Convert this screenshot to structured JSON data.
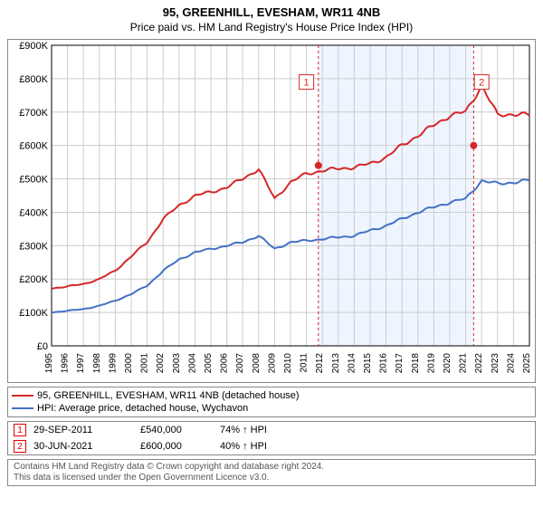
{
  "title": "95, GREENHILL, EVESHAM, WR11 4NB",
  "subtitle": "Price paid vs. HM Land Registry's House Price Index (HPI)",
  "chart": {
    "type": "line",
    "background_color": "#ffffff",
    "grid_color": "#cccccc",
    "axis_color": "#000000",
    "title_fontsize": 13,
    "subtitle_fontsize": 12,
    "label_fontsize": 11,
    "tick_fontsize": 10,
    "x_years": [
      1995,
      1996,
      1997,
      1998,
      1999,
      2000,
      2001,
      2002,
      2003,
      2004,
      2005,
      2006,
      2007,
      2008,
      2009,
      2010,
      2011,
      2012,
      2013,
      2014,
      2015,
      2016,
      2017,
      2018,
      2019,
      2020,
      2021,
      2022,
      2023,
      2024,
      2025
    ],
    "xlim": [
      1995,
      2025
    ],
    "ylim": [
      0,
      900000
    ],
    "ytick_step": 100000,
    "ytick_labels": [
      "£0",
      "£100K",
      "£200K",
      "£300K",
      "£400K",
      "£500K",
      "£600K",
      "£700K",
      "£800K",
      "£900K"
    ],
    "shaded_band": {
      "x_start": 2011.75,
      "x_end": 2021.5,
      "color": "#eef5ff"
    },
    "series": [
      {
        "name": "95, GREENHILL, EVESHAM, WR11 4NB (detached house)",
        "color": "#d62728",
        "line_width": 2,
        "values_per_year": [
          172,
          178,
          185,
          200,
          225,
          268,
          310,
          380,
          420,
          450,
          460,
          475,
          500,
          530,
          440,
          490,
          515,
          525,
          530,
          535,
          545,
          565,
          600,
          630,
          660,
          690,
          700,
          780,
          690,
          695,
          690
        ]
      },
      {
        "name": "HPI: Average price, detached house, Wychavon",
        "color": "#4472c4",
        "line_width": 2,
        "values_per_year": [
          100,
          105,
          110,
          120,
          135,
          155,
          180,
          225,
          258,
          280,
          290,
          300,
          310,
          330,
          290,
          310,
          315,
          320,
          325,
          330,
          345,
          360,
          380,
          400,
          415,
          430,
          440,
          495,
          485,
          490,
          495
        ]
      }
    ],
    "vlines": [
      {
        "x": 2011.75,
        "color": "#d62728",
        "dash": "3,3"
      },
      {
        "x": 2021.5,
        "color": "#d62728",
        "dash": "3,3"
      }
    ],
    "markers": [
      {
        "id": "1",
        "x": 2011.75,
        "y": 540000,
        "box_x": 2011.0,
        "box_y": 790000,
        "color": "#d62728"
      },
      {
        "id": "2",
        "x": 2021.5,
        "y": 600000,
        "box_x": 2022.0,
        "box_y": 790000,
        "color": "#d62728"
      }
    ]
  },
  "legend": {
    "items": [
      {
        "color": "#d62728",
        "label": "95, GREENHILL, EVESHAM, WR11 4NB (detached house)"
      },
      {
        "color": "#4472c4",
        "label": "HPI: Average price, detached house, Wychavon"
      }
    ]
  },
  "sales": [
    {
      "marker": "1",
      "date": "29-SEP-2011",
      "price": "£540,000",
      "hpi": "74% ↑ HPI"
    },
    {
      "marker": "2",
      "date": "30-JUN-2021",
      "price": "£600,000",
      "hpi": "40% ↑ HPI"
    }
  ],
  "footer": {
    "line1": "Contains HM Land Registry data © Crown copyright and database right 2024.",
    "line2": "This data is licensed under the Open Government Licence v3.0."
  }
}
